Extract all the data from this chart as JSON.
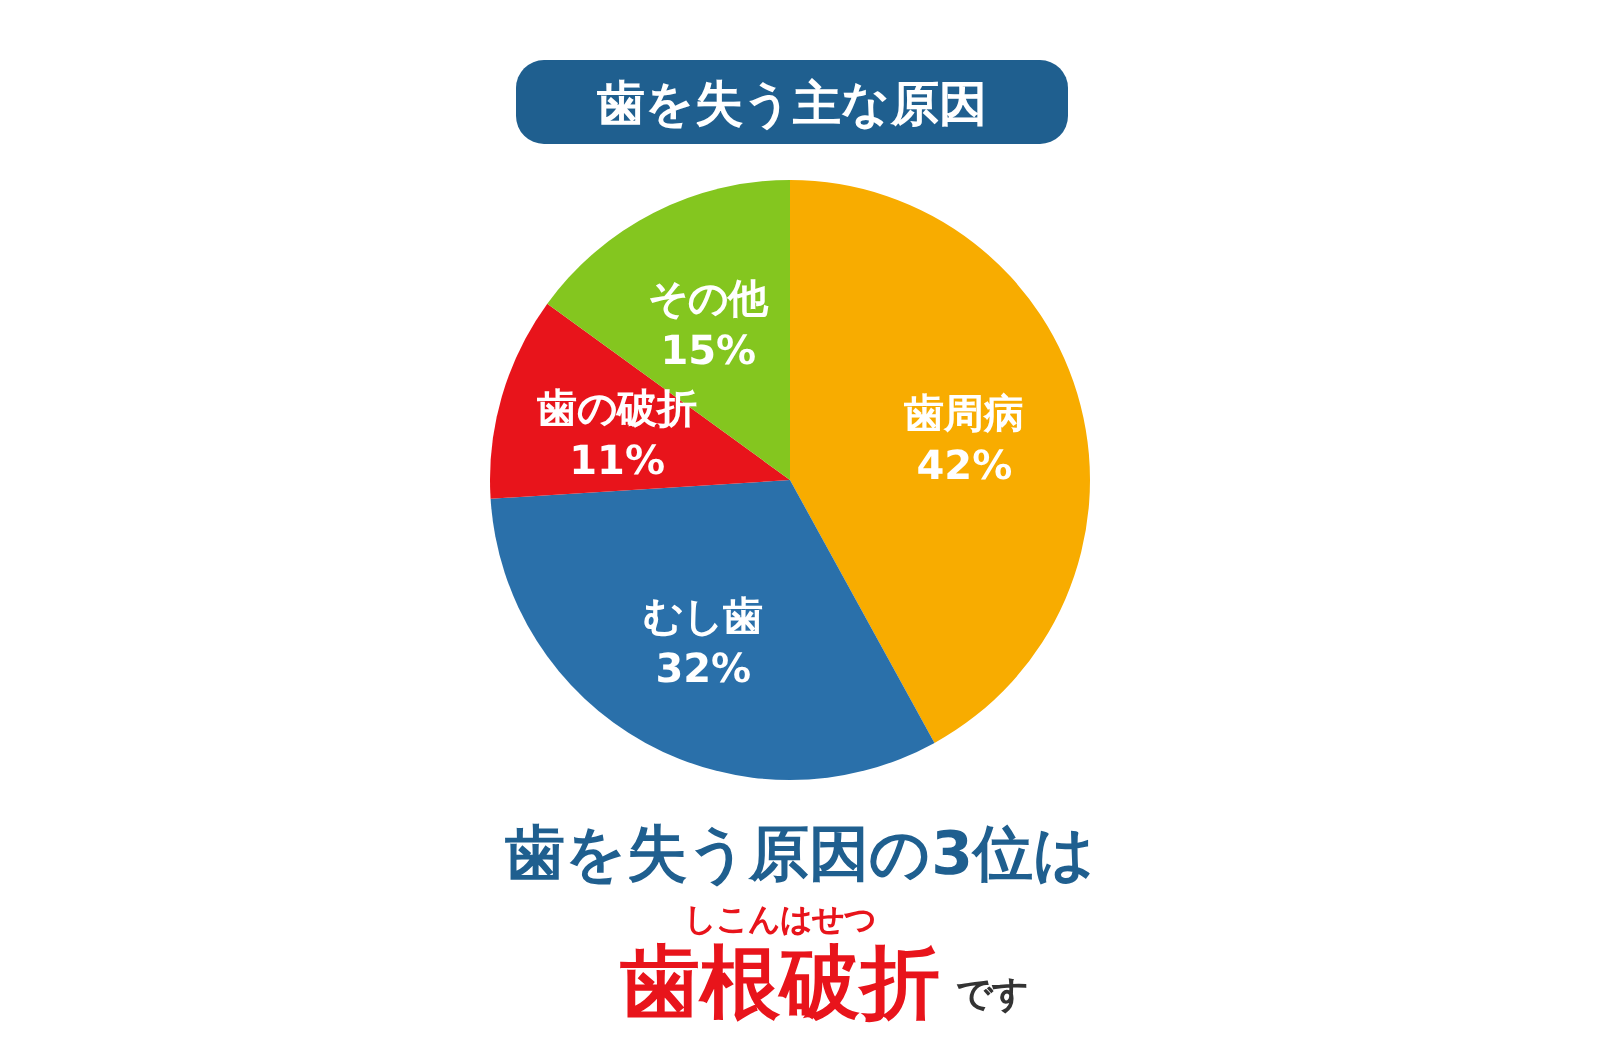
{
  "chart_data": {
    "type": "pie",
    "title": "歯を失う主な原因",
    "categories": [
      "歯周病",
      "むし歯",
      "歯の破折",
      "その他"
    ],
    "values": [
      42,
      32,
      11,
      15
    ],
    "value_labels": [
      "42%",
      "32%",
      "11%",
      "15%"
    ],
    "colors": [
      "#f8ac00",
      "#2a70aa",
      "#e8141b",
      "#84c61f"
    ],
    "annotations": [
      "歯を失う原因の3位は",
      "しこんはせつ",
      "歯根破折",
      "です"
    ]
  }
}
